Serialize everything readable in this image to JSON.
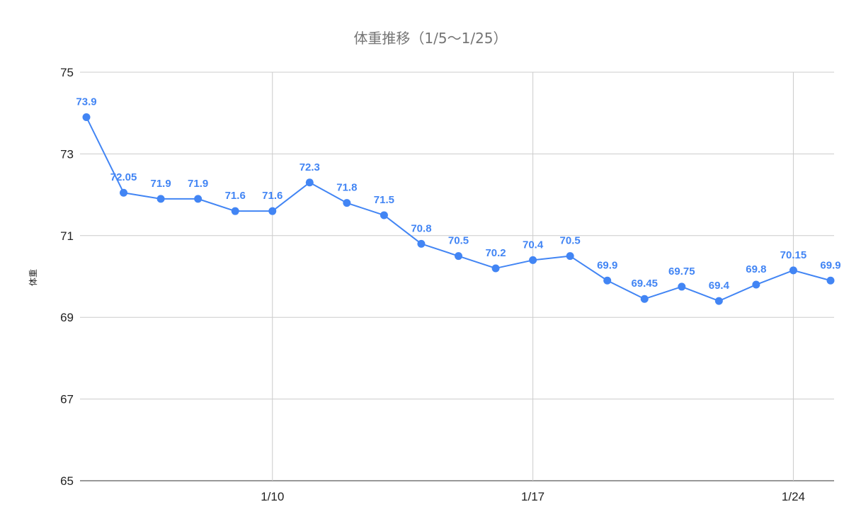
{
  "chart_data": {
    "type": "line",
    "title": "体重推移（1/5〜1/25）",
    "xlabel": "",
    "ylabel": "体重",
    "ylim": [
      65,
      75
    ],
    "yticks": [
      65,
      67,
      69,
      71,
      73,
      75
    ],
    "xlim": [
      "1/5",
      "1/25"
    ],
    "xticks": [
      "1/10",
      "1/17",
      "1/24"
    ],
    "x": [
      "1/5",
      "1/6",
      "1/7",
      "1/8",
      "1/9",
      "1/10",
      "1/11",
      "1/12",
      "1/13",
      "1/14",
      "1/15",
      "1/16",
      "1/17",
      "1/18",
      "1/19",
      "1/20",
      "1/21",
      "1/22",
      "1/23",
      "1/24",
      "1/25"
    ],
    "series": [
      {
        "values": [
          73.9,
          72.05,
          71.9,
          71.9,
          71.6,
          71.6,
          72.3,
          71.8,
          71.5,
          70.8,
          70.5,
          70.2,
          70.4,
          70.5,
          69.9,
          69.45,
          69.75,
          69.4,
          69.8,
          70.15,
          69.9
        ],
        "labels": [
          "73.9",
          "72.05",
          "71.9",
          "71.9",
          "71.6",
          "71.6",
          "72.3",
          "71.8",
          "71.5",
          "70.8",
          "70.5",
          "70.2",
          "70.4",
          "70.5",
          "69.9",
          "69.45",
          "69.75",
          "69.4",
          "69.8",
          "70.15",
          "69.9"
        ],
        "color": "#4285f4"
      }
    ],
    "grid": true,
    "gridColor": "#cccccc"
  }
}
